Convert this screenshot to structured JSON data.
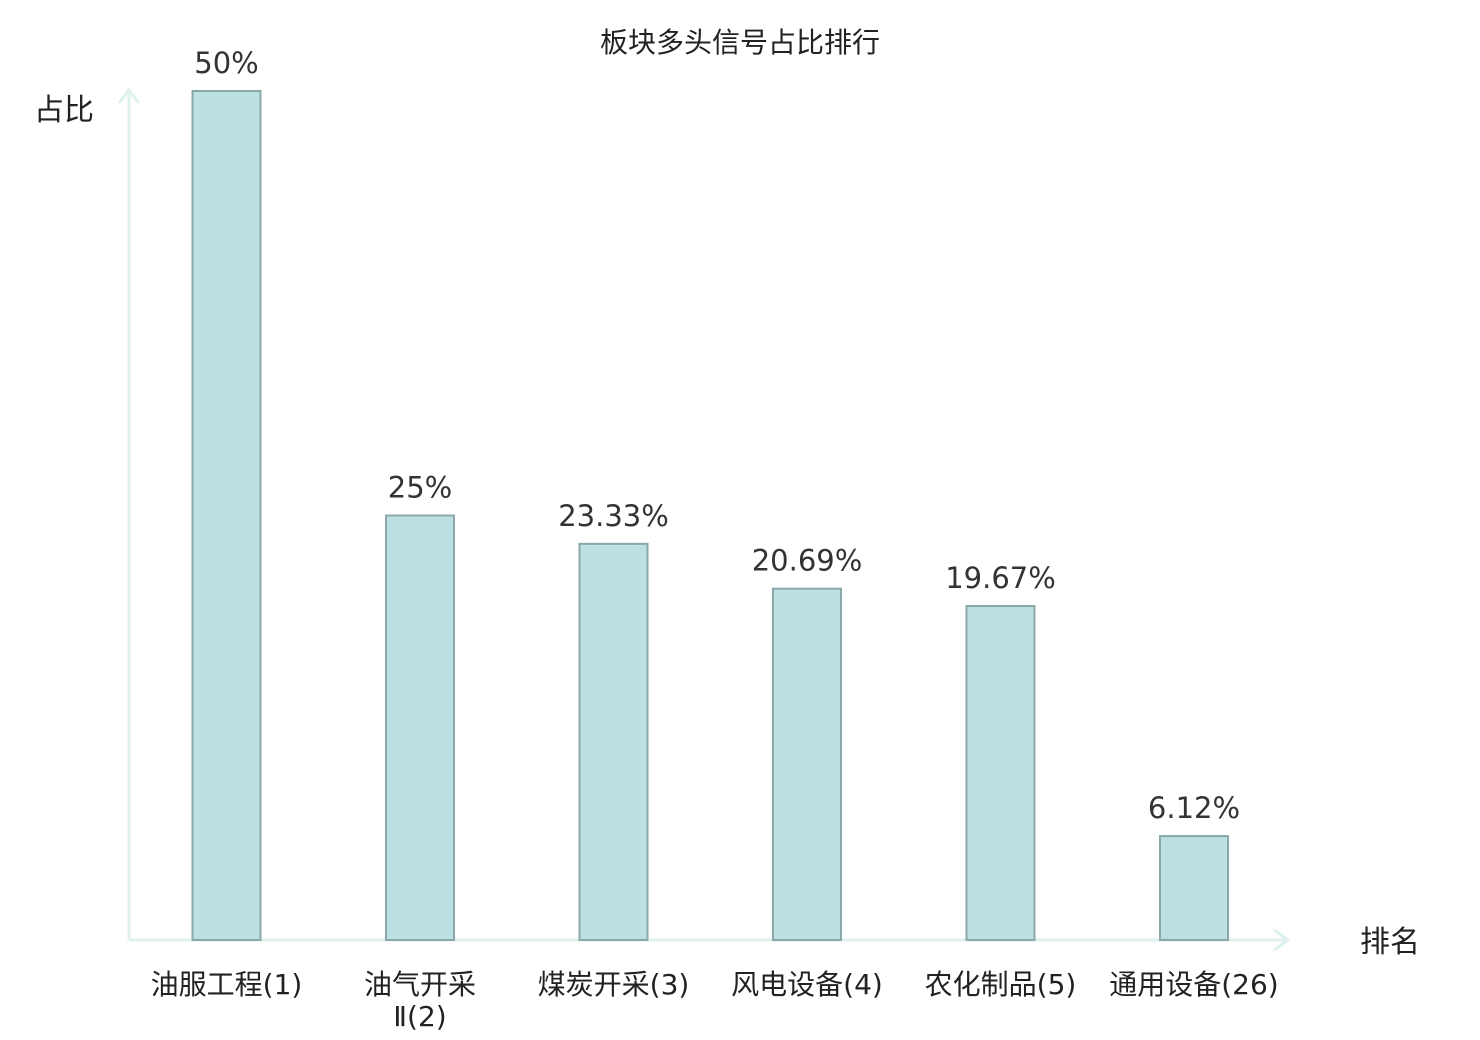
{
  "chart_data": {
    "type": "bar",
    "title": "板块多头信号占比排行",
    "ylabel": "占比",
    "xlabel": "排名",
    "categories": [
      "油服工程(1)",
      "油气开采Ⅱ(2)",
      "煤炭开采(3)",
      "风电设备(4)",
      "农化制品(5)",
      "通用设备(26)"
    ],
    "category_lines": [
      [
        "油服工程(1)"
      ],
      [
        "油气开采",
        "Ⅱ(2)"
      ],
      [
        "煤炭开采(3)"
      ],
      [
        "风电设备(4)"
      ],
      [
        "农化制品(5)"
      ],
      [
        "通用设备(26)"
      ]
    ],
    "values": [
      50,
      25,
      23.33,
      20.69,
      19.67,
      6.12
    ],
    "value_labels": [
      "50%",
      "25%",
      "23.33%",
      "20.69%",
      "19.67%",
      "6.12%"
    ],
    "highlight_index": 5,
    "ylim": [
      0,
      50
    ],
    "grid": false,
    "colors": {
      "bar_fill": "#bde0e3",
      "bar_stroke": "#8aa7aa",
      "axis": "#dff1ee",
      "label": "#222222",
      "highlight": "#e03030"
    }
  }
}
